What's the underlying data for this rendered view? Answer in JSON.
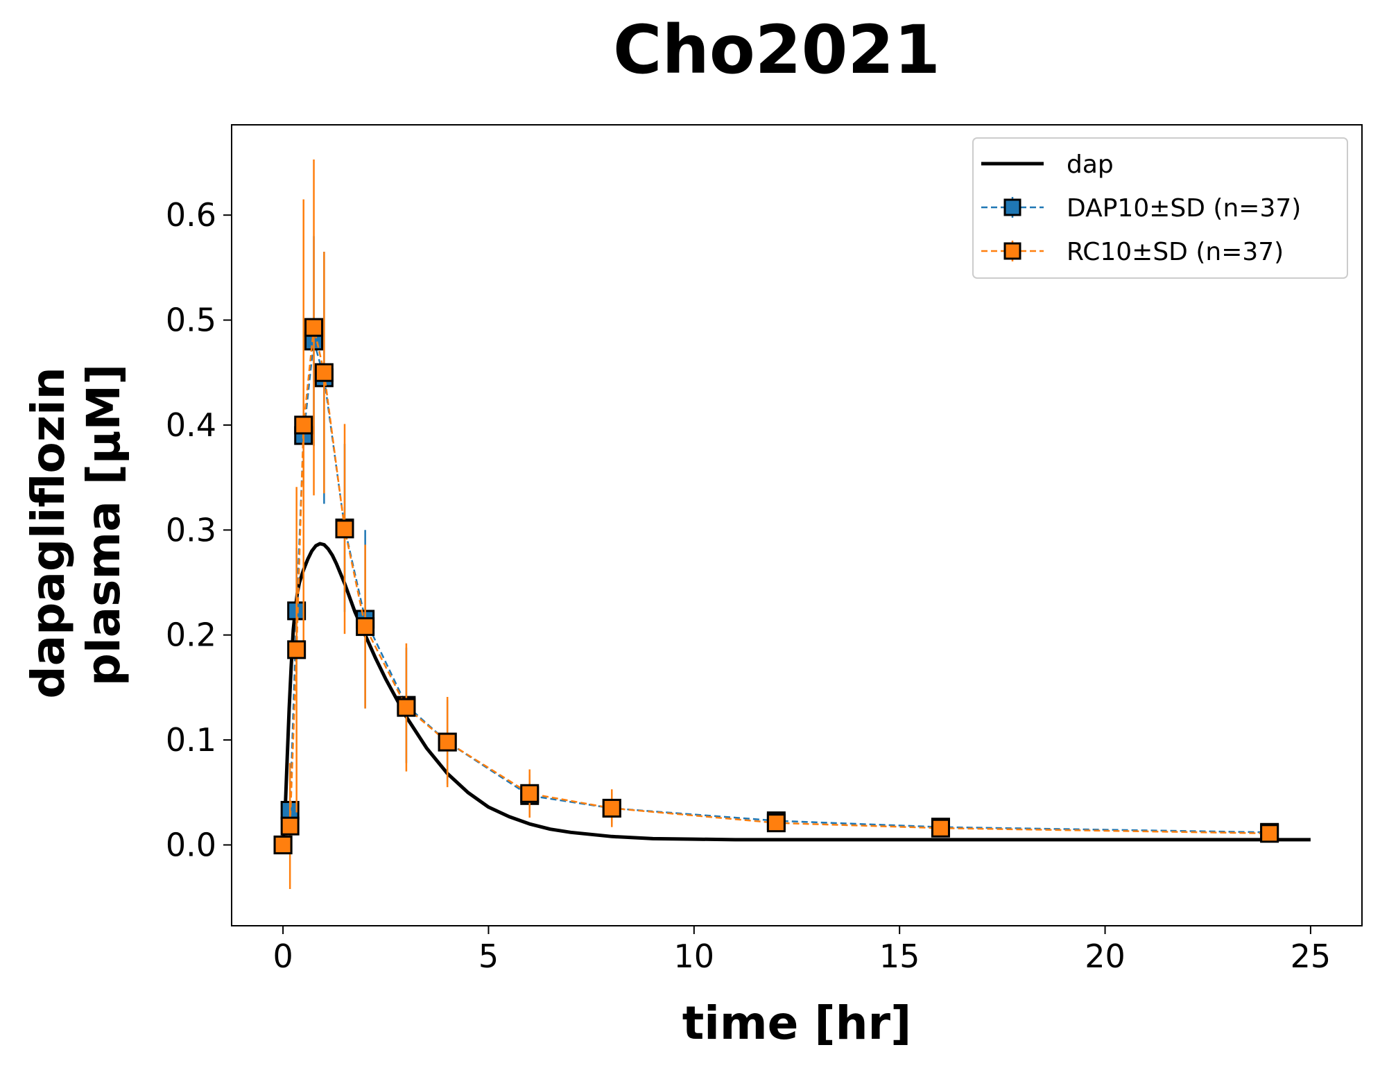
{
  "chart_data": {
    "type": "line",
    "title": "Cho2021",
    "xlabel": "time [hr]",
    "ylabel_lines": [
      "dapagliflozin",
      "plasma [µM]"
    ],
    "xlim": [
      -1.25,
      26.25
    ],
    "ylim": [
      -0.077,
      0.686
    ],
    "xticks": [
      0,
      5,
      10,
      15,
      20,
      25
    ],
    "xtick_labels": [
      "0",
      "5",
      "10",
      "15",
      "20",
      "25"
    ],
    "yticks": [
      0.0,
      0.1,
      0.2,
      0.3,
      0.4,
      0.5,
      0.6
    ],
    "ytick_labels": [
      "0.0",
      "0.1",
      "0.2",
      "0.3",
      "0.4",
      "0.5",
      "0.6"
    ],
    "grid": false,
    "legend_position": "top-right",
    "simulation": {
      "name": "dap",
      "color": "#000000",
      "x": [
        0.0,
        0.05,
        0.1,
        0.15,
        0.2,
        0.25,
        0.3,
        0.35,
        0.4,
        0.5,
        0.6,
        0.7,
        0.8,
        0.9,
        1.0,
        1.1,
        1.2,
        1.3,
        1.5,
        1.75,
        2.0,
        2.25,
        2.5,
        3.0,
        3.5,
        4.0,
        4.5,
        5.0,
        5.5,
        6.0,
        6.5,
        7.0,
        8.0,
        9.0,
        10.0,
        11.0,
        12.0,
        14.0,
        16.0,
        18.0,
        20.0,
        22.0,
        24.0,
        25.0
      ],
      "y": [
        0.0,
        0.03,
        0.08,
        0.13,
        0.17,
        0.205,
        0.225,
        0.24,
        0.25,
        0.262,
        0.272,
        0.28,
        0.285,
        0.287,
        0.286,
        0.282,
        0.276,
        0.268,
        0.249,
        0.222,
        0.2,
        0.178,
        0.158,
        0.122,
        0.092,
        0.068,
        0.05,
        0.036,
        0.027,
        0.02,
        0.015,
        0.012,
        0.008,
        0.006,
        0.0055,
        0.005,
        0.005,
        0.005,
        0.005,
        0.005,
        0.005,
        0.005,
        0.005,
        0.005
      ]
    },
    "series": [
      {
        "name": "DAP10±SD (n=37)",
        "color": "#1f77b4",
        "x": [
          0.0,
          0.17,
          0.33,
          0.5,
          0.75,
          1.0,
          1.5,
          2.0,
          3.0,
          4.0,
          6.0,
          8.0,
          12.0,
          16.0,
          24.0
        ],
        "y": [
          0.0,
          0.033,
          0.223,
          0.39,
          0.48,
          0.445,
          0.302,
          0.215,
          0.133,
          0.098,
          0.047,
          0.035,
          0.023,
          0.017,
          0.012
        ],
        "sd": [
          0.0,
          0.022,
          0.06,
          0.045,
          0.1,
          0.12,
          0.08,
          0.085,
          0.055,
          0.04,
          0.02,
          0.015,
          0.007,
          0.005,
          0.004
        ]
      },
      {
        "name": "RC10±SD (n=37)",
        "color": "#ff7f0e",
        "x": [
          0.0,
          0.17,
          0.33,
          0.5,
          0.75,
          1.0,
          1.5,
          2.0,
          3.0,
          4.0,
          6.0,
          8.0,
          12.0,
          16.0,
          24.0
        ],
        "y": [
          0.0,
          0.018,
          0.186,
          0.4,
          0.493,
          0.45,
          0.301,
          0.208,
          0.131,
          0.098,
          0.049,
          0.035,
          0.021,
          0.016,
          0.011
        ],
        "sd": [
          0.0,
          0.06,
          0.155,
          0.215,
          0.16,
          0.115,
          0.1,
          0.078,
          0.061,
          0.043,
          0.023,
          0.018,
          0.007,
          0.005,
          0.004
        ]
      }
    ]
  }
}
